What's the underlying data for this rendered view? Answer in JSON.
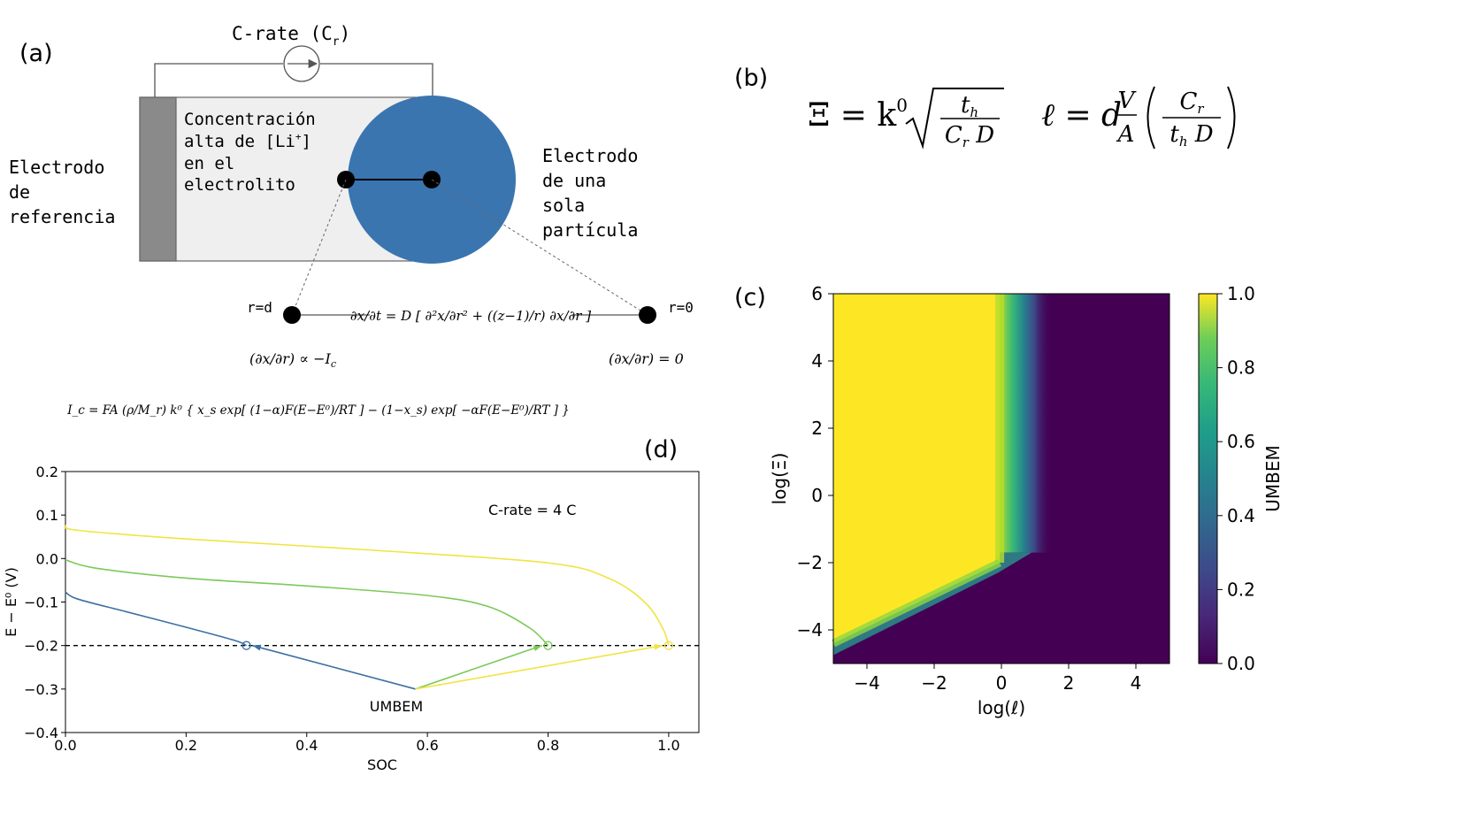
{
  "panel_a": {
    "label": "(a)",
    "crate_label": "C-rate (C",
    "crate_sub": "r",
    "crate_close": ")",
    "ref_electrode": [
      "Electrodo",
      "de",
      "referencia"
    ],
    "electrolyte": [
      "Concentración",
      "alta de [Li",
      "en el",
      "electrolito"
    ],
    "electrolyte_sup": "+",
    "electrolyte_close": "]",
    "particle": [
      "Electrodo",
      "de una",
      "sola",
      "partícula"
    ],
    "r_d": "r=d",
    "r_0": "r=0",
    "diffusion_eq": "∂x/∂t = D [ ∂²x/∂r² + ((z−1)/r) ∂x/∂r ]",
    "bc_left": "(∂x/∂r) ∝ −I",
    "bc_left_sub": "c",
    "bc_right": "(∂x/∂r) = 0",
    "current_eq": "I_c = FA (ρ/M_r) k⁰ { x_s exp[ (1−α)F(E−E⁰)/RT ] − (1−x_s) exp[ −αF(E−E⁰)/RT ] }"
  },
  "panel_b": {
    "label": "(b)",
    "xi_lhs": "Ξ = k",
    "xi_sup": "0",
    "xi_num": "t",
    "xi_num_sub": "h",
    "xi_den": "C",
    "xi_den_sub": "r",
    "xi_den_tail": " D",
    "ell_lhs": "ℓ = d",
    "ell_frac_num": "V",
    "ell_frac_den": "A",
    "ell_num": "C",
    "ell_num_sub": "r",
    "ell_den": "t",
    "ell_den_sub": "h",
    "ell_den_tail": " D"
  },
  "panel_c": {
    "label": "(c)",
    "colorbar_label": "UMBEM"
  },
  "panel_d": {
    "label": "(d)",
    "annotation": "C-rate = 4 C",
    "umbem_label": "UMBEM"
  },
  "colors": {
    "particle": "#3a75b0",
    "electrolyte_bg": "#efefef",
    "ref_electrode": "#8a8a8a",
    "blue": "#3d6fa3",
    "green": "#7cc95a",
    "yellow": "#f0e442"
  },
  "chart_data": [
    {
      "type": "heatmap",
      "panel": "c",
      "xlabel": "log(ℓ)",
      "ylabel": "log(Ξ)",
      "xlim": [
        -5,
        5
      ],
      "ylim": [
        -5,
        6
      ],
      "xticks": [
        "−4",
        "−2",
        "0",
        "2",
        "4"
      ],
      "xtick_values": [
        -4,
        -2,
        0,
        2,
        4
      ],
      "yticks": [
        "−4",
        "−2",
        "0",
        "2",
        "4",
        "6"
      ],
      "ytick_values": [
        -4,
        -2,
        0,
        2,
        4,
        6
      ],
      "colorbar": {
        "label": "UMBEM",
        "range": [
          0,
          1
        ],
        "ticks": [
          "0.0",
          "0.2",
          "0.4",
          "0.6",
          "0.8",
          "1.0"
        ],
        "tick_values": [
          0,
          0.2,
          0.4,
          0.6,
          0.8,
          1.0
        ],
        "colormap": "viridis"
      },
      "regions": [
        {
          "name": "high UMBEM (≈1.0)",
          "boundary": "log(ℓ) ≈ 0 for log(Ξ) > −2; diagonal from (−5,−4.4) to (0,−2) below"
        },
        {
          "name": "low UMBEM (≈0.0)",
          "boundary": "right / lower-right region"
        }
      ]
    },
    {
      "type": "line",
      "panel": "d",
      "xlabel": "SOC",
      "ylabel": "E − E⁰ (V)",
      "xlim": [
        0.0,
        1.05
      ],
      "ylim": [
        -0.4,
        0.2
      ],
      "xticks": [
        "0.0",
        "0.2",
        "0.4",
        "0.6",
        "0.8",
        "1.0"
      ],
      "xtick_values": [
        0,
        0.2,
        0.4,
        0.6,
        0.8,
        1.0
      ],
      "yticks": [
        "−0.4",
        "−0.3",
        "−0.2",
        "−0.1",
        "0.0",
        "0.1",
        "0.2"
      ],
      "ytick_values": [
        -0.4,
        -0.3,
        -0.2,
        -0.1,
        0.0,
        0.1,
        0.2
      ],
      "cutoff": -0.2,
      "series": [
        {
          "name": "blue",
          "color": "#3d6fa3",
          "x": [
            0.0,
            0.02,
            0.1,
            0.2,
            0.28,
            0.3
          ],
          "y": [
            -0.077,
            -0.093,
            -0.122,
            -0.158,
            -0.188,
            -0.2
          ],
          "end_marker": [
            0.3,
            -0.2
          ]
        },
        {
          "name": "green",
          "color": "#7cc95a",
          "x": [
            0.0,
            0.05,
            0.2,
            0.4,
            0.6,
            0.7,
            0.77,
            0.8
          ],
          "y": [
            -0.003,
            -0.022,
            -0.045,
            -0.063,
            -0.085,
            -0.11,
            -0.16,
            -0.2
          ],
          "end_marker": [
            0.8,
            -0.2
          ]
        },
        {
          "name": "yellow",
          "color": "#f0e442",
          "x": [
            0.0,
            0.02,
            0.2,
            0.5,
            0.8,
            0.9,
            0.96,
            0.99,
            1.0
          ],
          "y": [
            0.077,
            0.065,
            0.045,
            0.02,
            -0.01,
            -0.045,
            -0.1,
            -0.16,
            -0.2
          ],
          "end_marker": [
            1.0,
            -0.2
          ]
        }
      ],
      "umbem_arrows": [
        {
          "color": "#3d6fa3",
          "from": [
            0.58,
            -0.3
          ],
          "to": [
            0.31,
            -0.2
          ]
        },
        {
          "color": "#7cc95a",
          "from": [
            0.58,
            -0.3
          ],
          "to": [
            0.79,
            -0.2
          ]
        },
        {
          "color": "#f0e442",
          "from": [
            0.58,
            -0.3
          ],
          "to": [
            0.99,
            -0.2
          ]
        }
      ]
    }
  ]
}
